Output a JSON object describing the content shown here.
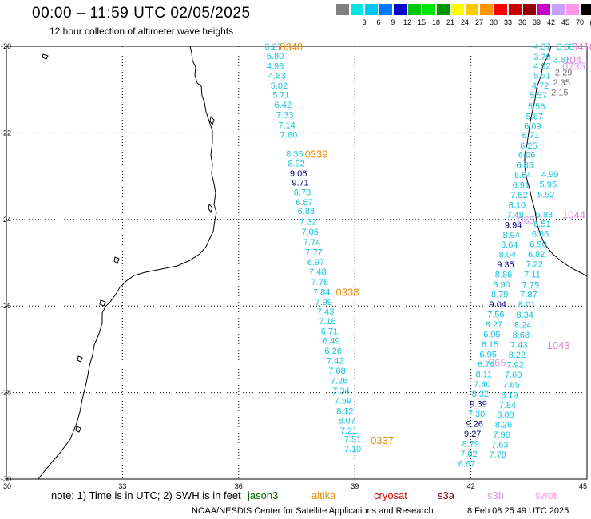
{
  "title": "00:00 – 11:59 UTC 02/05/2025",
  "subtitle": "12 hour collection of altimeter wave heights",
  "legend": {
    "bins": [
      {
        "label": "",
        "color": "#808080"
      },
      {
        "label": "3",
        "color": "#00e5e5"
      },
      {
        "label": "6",
        "color": "#00c8ff"
      },
      {
        "label": "9",
        "color": "#0078ff"
      },
      {
        "label": "12",
        "color": "#0000c8"
      },
      {
        "label": "15",
        "color": "#00c800"
      },
      {
        "label": "18",
        "color": "#00e600"
      },
      {
        "label": "21",
        "color": "#009600"
      },
      {
        "label": "24",
        "color": "#ffff00"
      },
      {
        "label": "27",
        "color": "#ffc800"
      },
      {
        "label": "30",
        "color": "#ff9600"
      },
      {
        "label": "33",
        "color": "#ff0000"
      },
      {
        "label": "36",
        "color": "#c80000"
      },
      {
        "label": "39",
        "color": "#960000"
      },
      {
        "label": "42",
        "color": "#c800c8"
      },
      {
        "label": "45",
        "color": "#c8a0ff"
      },
      {
        "label": "70",
        "color": "#ff96e6"
      },
      {
        "label": "(ft)",
        "color": "#000000"
      }
    ]
  },
  "axes": {
    "lat_ticks": [
      "-20",
      "-22",
      "-24",
      "-26",
      "-28",
      "-30"
    ],
    "lon_ticks": [
      "30",
      "33",
      "36",
      "39",
      "42",
      "45"
    ]
  },
  "map_area": {
    "lon": [
      30,
      45
    ],
    "lat": [
      -30,
      -20
    ]
  },
  "colors": {
    "cyan": "#11c2e0",
    "navy": "#00008b",
    "green": "#3a9a3a",
    "gray": "#707070",
    "orange": "#f08c00",
    "pink": "#e67ad2",
    "lavender": "#d09ee8"
  },
  "tracks": [
    {
      "color": "cyan",
      "points": [
        {
          "lon": 36.9,
          "lat": -20.0,
          "v": "6.27"
        },
        {
          "lon": 36.95,
          "lat": -20.22,
          "v": "5.80"
        },
        {
          "lon": 36.95,
          "lat": -20.45,
          "v": "4.98"
        },
        {
          "lon": 37.0,
          "lat": -20.67,
          "v": "4.83"
        },
        {
          "lon": 37.05,
          "lat": -20.9,
          "v": "5.02"
        },
        {
          "lon": 37.1,
          "lat": -21.12,
          "v": "5.71"
        },
        {
          "lon": 37.15,
          "lat": -21.35,
          "v": "6.42"
        },
        {
          "lon": 37.2,
          "lat": -21.58,
          "v": "7.33"
        },
        {
          "lon": 37.25,
          "lat": -21.82,
          "v": "7.14"
        },
        {
          "lon": 37.3,
          "lat": -22.04,
          "v": "7.60"
        }
      ]
    },
    {
      "color": "cyan",
      "points": [
        {
          "lon": 37.45,
          "lat": -22.48,
          "v": "8.36"
        },
        {
          "lon": 37.5,
          "lat": -22.7,
          "v": "8.92"
        },
        {
          "lon": 37.6,
          "lat": -23.15,
          "v": "9.71",
          "c": "navy"
        },
        {
          "lon": 37.65,
          "lat": -23.37,
          "v": "6.78"
        },
        {
          "lon": 37.7,
          "lat": -23.6,
          "v": "6.87"
        },
        {
          "lon": 37.75,
          "lat": -23.8,
          "v": "6.88"
        },
        {
          "lon": 37.8,
          "lat": -24.05,
          "v": "7.32"
        },
        {
          "lon": 37.85,
          "lat": -24.28,
          "v": "7.06"
        },
        {
          "lon": 37.9,
          "lat": -24.52,
          "v": "7.74"
        },
        {
          "lon": 37.95,
          "lat": -24.75,
          "v": "7.77"
        },
        {
          "lon": 38.0,
          "lat": -24.98,
          "v": "6.97"
        },
        {
          "lon": 38.05,
          "lat": -25.2,
          "v": "7.48"
        },
        {
          "lon": 38.1,
          "lat": -25.44,
          "v": "7.76"
        },
        {
          "lon": 38.15,
          "lat": -25.67,
          "v": "7.84"
        }
      ]
    },
    {
      "color": "cyan",
      "points": [
        {
          "lon": 37.55,
          "lat": -22.93,
          "v": "9.06",
          "c": "navy"
        }
      ]
    },
    {
      "color": "cyan",
      "points": [
        {
          "lon": 38.2,
          "lat": -25.9,
          "v": "7.99"
        },
        {
          "lon": 38.25,
          "lat": -26.13,
          "v": "7.43"
        },
        {
          "lon": 38.3,
          "lat": -26.35,
          "v": "7.18"
        },
        {
          "lon": 38.35,
          "lat": -26.58,
          "v": "6.71"
        },
        {
          "lon": 38.4,
          "lat": -26.8,
          "v": "6.49"
        },
        {
          "lon": 38.45,
          "lat": -27.03,
          "v": "6.26"
        },
        {
          "lon": 38.5,
          "lat": -27.26,
          "v": "7.42"
        },
        {
          "lon": 38.55,
          "lat": -27.49,
          "v": "7.08"
        },
        {
          "lon": 38.6,
          "lat": -27.72,
          "v": "7.26"
        },
        {
          "lon": 38.65,
          "lat": -27.95,
          "v": "7.34"
        },
        {
          "lon": 38.7,
          "lat": -28.18,
          "v": "7.59"
        },
        {
          "lon": 38.75,
          "lat": -28.42,
          "v": "8.12"
        },
        {
          "lon": 38.8,
          "lat": -28.64,
          "v": "8.07"
        },
        {
          "lon": 38.85,
          "lat": -28.87,
          "v": "7.21"
        },
        {
          "lon": 38.95,
          "lat": -29.07,
          "v": "7.51"
        },
        {
          "lon": 38.95,
          "lat": -29.3,
          "v": "7.10"
        }
      ]
    },
    {
      "color": "cyan",
      "points": [
        {
          "lon": 43.85,
          "lat": -20.0,
          "v": "4.37"
        },
        {
          "lon": 43.85,
          "lat": -20.24,
          "v": "3.70"
        },
        {
          "lon": 43.85,
          "lat": -20.45,
          "v": "4.92"
        },
        {
          "lon": 43.85,
          "lat": -20.67,
          "v": "5.51"
        },
        {
          "lon": 43.8,
          "lat": -20.9,
          "v": "4.72"
        },
        {
          "lon": 43.75,
          "lat": -21.13,
          "v": "5.57"
        },
        {
          "lon": 43.7,
          "lat": -21.38,
          "v": "5.56"
        },
        {
          "lon": 43.65,
          "lat": -21.61,
          "v": "5.67"
        },
        {
          "lon": 43.6,
          "lat": -21.84,
          "v": "6.09"
        },
        {
          "lon": 43.55,
          "lat": -22.05,
          "v": "6.71"
        },
        {
          "lon": 43.5,
          "lat": -22.29,
          "v": "6.25"
        },
        {
          "lon": 43.45,
          "lat": -22.5,
          "v": "6.06"
        },
        {
          "lon": 43.4,
          "lat": -22.74,
          "v": "6.85"
        },
        {
          "lon": 43.35,
          "lat": -22.97,
          "v": "6.64"
        },
        {
          "lon": 43.3,
          "lat": -23.2,
          "v": "6.91"
        },
        {
          "lon": 43.25,
          "lat": -23.43,
          "v": "7.52"
        },
        {
          "lon": 43.2,
          "lat": -23.66,
          "v": "8.10"
        },
        {
          "lon": 43.15,
          "lat": -23.89,
          "v": "7.48"
        }
      ]
    },
    {
      "color": "cyan",
      "points": [
        {
          "lon": 43.1,
          "lat": -24.12,
          "v": "9.94",
          "c": "navy"
        },
        {
          "lon": 43.05,
          "lat": -24.35,
          "v": "8.94"
        },
        {
          "lon": 43.0,
          "lat": -24.58,
          "v": "8.64"
        },
        {
          "lon": 42.95,
          "lat": -24.81,
          "v": "8.04"
        },
        {
          "lon": 42.9,
          "lat": -25.04,
          "v": "9.35",
          "c": "navy"
        },
        {
          "lon": 42.85,
          "lat": -25.27,
          "v": "8.86"
        },
        {
          "lon": 42.8,
          "lat": -25.5,
          "v": "8.90"
        },
        {
          "lon": 42.75,
          "lat": -25.73,
          "v": "8.79"
        },
        {
          "lon": 42.7,
          "lat": -25.96,
          "v": "9.04",
          "c": "navy"
        },
        {
          "lon": 42.65,
          "lat": -26.19,
          "v": "7.56"
        },
        {
          "lon": 42.6,
          "lat": -26.42,
          "v": "8.27"
        },
        {
          "lon": 42.55,
          "lat": -26.65,
          "v": "6.95"
        },
        {
          "lon": 42.5,
          "lat": -26.88,
          "v": "6.15"
        },
        {
          "lon": 42.45,
          "lat": -27.11,
          "v": "6.95"
        },
        {
          "lon": 42.4,
          "lat": -27.34,
          "v": "6.76"
        },
        {
          "lon": 42.35,
          "lat": -27.57,
          "v": "8.11"
        },
        {
          "lon": 42.3,
          "lat": -27.8,
          "v": "7.40"
        },
        {
          "lon": 42.25,
          "lat": -28.03,
          "v": "8.32"
        },
        {
          "lon": 42.2,
          "lat": -28.26,
          "v": "9.39",
          "c": "navy"
        },
        {
          "lon": 42.15,
          "lat": -28.49,
          "v": "7.30"
        },
        {
          "lon": 42.1,
          "lat": -28.72,
          "v": "9.26",
          "c": "navy"
        },
        {
          "lon": 42.05,
          "lat": -28.95,
          "v": "9.27",
          "c": "navy"
        },
        {
          "lon": 42.0,
          "lat": -29.18,
          "v": "8.79"
        },
        {
          "lon": 41.95,
          "lat": -29.41,
          "v": "7.02"
        },
        {
          "lon": 41.9,
          "lat": -29.64,
          "v": "6.67"
        }
      ]
    },
    {
      "color": "cyan",
      "points": [
        {
          "lon": 44.05,
          "lat": -22.95,
          "v": "4.99"
        },
        {
          "lon": 44.0,
          "lat": -23.18,
          "v": "5.95"
        },
        {
          "lon": 43.95,
          "lat": -23.42,
          "v": "5.52"
        },
        {
          "lon": 43.9,
          "lat": -23.88,
          "v": "5.83"
        }
      ]
    },
    {
      "color": "cyan",
      "points": [
        {
          "lon": 43.85,
          "lat": -24.1,
          "v": "6.51"
        },
        {
          "lon": 43.8,
          "lat": -24.33,
          "v": "6.86"
        },
        {
          "lon": 43.75,
          "lat": -24.57,
          "v": "6.90"
        },
        {
          "lon": 43.7,
          "lat": -24.8,
          "v": "6.82"
        },
        {
          "lon": 43.65,
          "lat": -25.03,
          "v": "7.22"
        },
        {
          "lon": 43.6,
          "lat": -25.27,
          "v": "7.11"
        },
        {
          "lon": 43.55,
          "lat": -25.51,
          "v": "7.75"
        },
        {
          "lon": 43.5,
          "lat": -25.73,
          "v": "7.87"
        },
        {
          "lon": 43.45,
          "lat": -25.96,
          "v": "8.01"
        },
        {
          "lon": 43.4,
          "lat": -26.2,
          "v": "8.34"
        },
        {
          "lon": 43.35,
          "lat": -26.43,
          "v": "8.24"
        },
        {
          "lon": 43.3,
          "lat": -26.66,
          "v": "8.68"
        },
        {
          "lon": 43.25,
          "lat": -26.89,
          "v": "7.43"
        },
        {
          "lon": 43.2,
          "lat": -27.12,
          "v": "8.22"
        },
        {
          "lon": 43.15,
          "lat": -27.35,
          "v": "7.92"
        },
        {
          "lon": 43.1,
          "lat": -27.58,
          "v": "7.60"
        },
        {
          "lon": 43.05,
          "lat": -27.81,
          "v": "7.65"
        },
        {
          "lon": 43.0,
          "lat": -28.05,
          "v": "8.19"
        },
        {
          "lon": 42.95,
          "lat": -28.28,
          "v": "7.84"
        },
        {
          "lon": 42.9,
          "lat": -28.51,
          "v": "8.08"
        },
        {
          "lon": 42.85,
          "lat": -28.74,
          "v": "8.26"
        },
        {
          "lon": 42.8,
          "lat": -28.97,
          "v": "7.96"
        },
        {
          "lon": 42.75,
          "lat": -29.2,
          "v": "7.63"
        },
        {
          "lon": 42.7,
          "lat": -29.43,
          "v": "7.78"
        }
      ]
    },
    {
      "color": "gray",
      "points": [
        {
          "lon": 44.4,
          "lat": -20.6,
          "v": "2.29"
        },
        {
          "lon": 44.35,
          "lat": -20.83,
          "v": "2.35"
        },
        {
          "lon": 44.3,
          "lat": -21.06,
          "v": "2.15"
        }
      ]
    },
    {
      "color": "cyan",
      "points": [
        {
          "lon": 44.35,
          "lat": -20.3,
          "v": "3.67"
        },
        {
          "lon": 44.45,
          "lat": -20.0,
          "v": "3.68"
        }
      ]
    }
  ],
  "pass_labels": [
    {
      "lon": 37.35,
      "lat": -20.0,
      "text": "0340",
      "color": "orange"
    },
    {
      "lon": 38.0,
      "lat": -22.48,
      "text": "0339",
      "color": "orange"
    },
    {
      "lon": 38.8,
      "lat": -25.67,
      "text": "0338",
      "color": "orange"
    },
    {
      "lon": 39.7,
      "lat": -29.1,
      "text": "0337",
      "color": "orange"
    },
    {
      "lon": 44.9,
      "lat": -20.0,
      "text": "0410",
      "color": "pink"
    },
    {
      "lon": 44.7,
      "lat": -20.3,
      "text": "104",
      "color": "pink"
    },
    {
      "lon": 44.65,
      "lat": -20.45,
      "text": "0235",
      "color": "lavender"
    },
    {
      "lon": 44.65,
      "lat": -23.88,
      "text": "1044",
      "color": "pink"
    },
    {
      "lon": 43.5,
      "lat": -24.0,
      "text": "065",
      "color": "lavender"
    },
    {
      "lon": 44.25,
      "lat": -26.9,
      "text": "1043",
      "color": "pink"
    },
    {
      "lon": 42.75,
      "lat": -27.3,
      "text": "065",
      "color": "lavender"
    }
  ],
  "note": "note: 1) Time is in UTC; 2) SWH is in feet",
  "satellites": [
    {
      "name": "jason3",
      "color": "#006400"
    },
    {
      "name": "altika",
      "color": "#f08c00"
    },
    {
      "name": "cryosat",
      "color": "#d40000"
    },
    {
      "name": "s3a",
      "color": "#8b0000"
    },
    {
      "name": "s3b",
      "color": "#c8a0e6"
    },
    {
      "name": "swot",
      "color": "#ff96e6"
    }
  ],
  "credit": "NOAA/NESDIS Center for Satellite Applications and Research",
  "timestamp": "8 Feb 08:25:49 UTC 2025"
}
